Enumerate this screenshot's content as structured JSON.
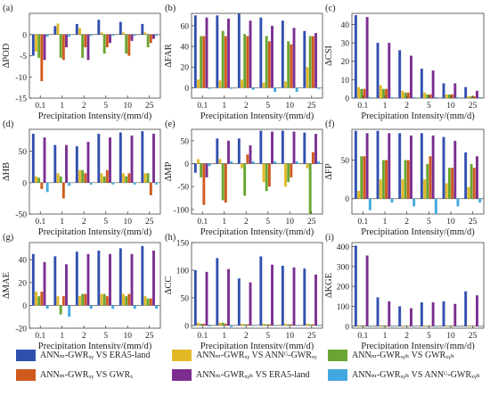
{
  "figure": {
    "legend": [
      {
        "label": "ANNₘ-GWRₓᵧ VS ERA5-land",
        "color": "#3050b0"
      },
      {
        "label": "ANNₘ-GWRₓᵧ VS ANNᴳ-GWRₓᵧ",
        "color": "#e2b826"
      },
      {
        "label": "ANNₘ-GWRₓᵧₕ VS GWRₓᵧₕ",
        "color": "#6aa531"
      },
      {
        "label": "ANNₘ-GWRₓᵧ VS GWRₓ",
        "color": "#cf5a1d"
      },
      {
        "label": "ANNₘ-GWRₓᵧₕ VS ERA5-land",
        "color": "#7b2e90"
      },
      {
        "label": "ANNₘ-GWRₓᵧₕ VS ANNᴳ-GWRₓᵧₕ",
        "color": "#42a9e0"
      }
    ]
  },
  "chart_data": [
    {
      "type": "bar",
      "panel": "(a)",
      "ylabel": "ΔPOD",
      "xlabel": "Precipitation Intensity/(mm/d)",
      "categories": [
        "0.1",
        "1",
        "2",
        "5",
        "10",
        "25"
      ],
      "ylim": [
        -15,
        5
      ],
      "yticks": [
        -15,
        -10,
        -5,
        0
      ],
      "series": [
        {
          "values": [
            -5,
            2,
            2.5,
            3.5,
            3,
            2.5
          ]
        },
        {
          "values": [
            -4,
            2.6,
            1.5,
            0.5,
            0.5,
            0.5
          ]
        },
        {
          "values": [
            -5.5,
            -5.5,
            -5.5,
            -4.5,
            -4.5,
            -3
          ]
        },
        {
          "values": [
            -11,
            -6,
            -3,
            -3,
            -5,
            -2
          ]
        },
        {
          "values": [
            -6,
            -3,
            -6,
            -2,
            -1.5,
            -1
          ]
        },
        {
          "values": [
            -0.5,
            -0.5,
            -0.3,
            -0.3,
            -0.3,
            -0.3
          ]
        }
      ]
    },
    {
      "type": "bar",
      "panel": "(b)",
      "ylabel": "ΔFAR",
      "xlabel": "Precipitation Intensity/(mm/d)",
      "categories": [
        "0.1",
        "1",
        "2",
        "5",
        "10",
        "25"
      ],
      "ylim": [
        -10,
        72
      ],
      "yticks": [
        0,
        20,
        40,
        60
      ],
      "series": [
        {
          "values": [
            70,
            70,
            72,
            68,
            65,
            55
          ]
        },
        {
          "values": [
            8,
            7,
            8,
            5,
            6,
            20
          ]
        },
        {
          "values": [
            50,
            55,
            52,
            50,
            45,
            50
          ]
        },
        {
          "values": [
            50,
            50,
            50,
            45,
            42,
            50
          ]
        },
        {
          "values": [
            68,
            67,
            65,
            60,
            58,
            53
          ]
        },
        {
          "values": [
            -1,
            -1,
            -2,
            -4,
            -4,
            -1
          ]
        }
      ]
    },
    {
      "type": "bar",
      "panel": "(c)",
      "ylabel": "ΔCSI",
      "xlabel": "Precipitation Intensity/(mm/d)",
      "categories": [
        "0.1",
        "1",
        "2",
        "5",
        "10",
        "25"
      ],
      "ylim": [
        0,
        46
      ],
      "yticks": [
        0,
        10,
        20,
        30,
        40
      ],
      "series": [
        {
          "values": [
            45,
            30,
            26,
            16,
            8,
            6
          ]
        },
        {
          "values": [
            6,
            7,
            4,
            3,
            2,
            1
          ]
        },
        {
          "values": [
            5,
            5,
            3,
            2,
            2,
            1
          ]
        },
        {
          "values": [
            5,
            5,
            3,
            2,
            2,
            1
          ]
        },
        {
          "values": [
            44,
            30,
            23,
            15,
            8,
            4
          ]
        },
        {
          "values": [
            0.5,
            0.5,
            0.5,
            0.5,
            0.5,
            0.5
          ]
        }
      ]
    },
    {
      "type": "bar",
      "panel": "(d)",
      "ylabel": "ΔHB",
      "xlabel": "Precipitation Intensity/(mm/d)",
      "categories": [
        "0.1",
        "1",
        "2",
        "5",
        "10",
        "25"
      ],
      "ylim": [
        -50,
        85
      ],
      "yticks": [
        -50,
        0,
        50
      ],
      "series": [
        {
          "values": [
            78,
            60,
            58,
            78,
            80,
            82
          ]
        },
        {
          "values": [
            10,
            15,
            20,
            15,
            15,
            15
          ]
        },
        {
          "values": [
            8,
            10,
            20,
            10,
            10,
            15
          ]
        },
        {
          "values": [
            -10,
            -25,
            15,
            20,
            15,
            -20
          ]
        },
        {
          "values": [
            72,
            60,
            65,
            72,
            75,
            78
          ]
        },
        {
          "values": [
            -15,
            -5,
            -3,
            -3,
            -3,
            -3
          ]
        }
      ]
    },
    {
      "type": "bar",
      "panel": "(e)",
      "ylabel": "ΔMP",
      "xlabel": "Precipitation Intensity/(mm/d)",
      "categories": [
        "0.1",
        "1",
        "2",
        "5",
        "10",
        "25"
      ],
      "ylim": [
        -110,
        75
      ],
      "yticks": [
        -100,
        -50,
        0,
        50
      ],
      "series": [
        {
          "values": [
            -20,
            55,
            55,
            72,
            72,
            68
          ]
        },
        {
          "values": [
            10,
            10,
            -10,
            -40,
            -50,
            -10
          ]
        },
        {
          "values": [
            -30,
            -80,
            -70,
            -60,
            -40,
            -110
          ]
        },
        {
          "values": [
            -90,
            -85,
            20,
            -50,
            -30,
            25
          ]
        },
        {
          "values": [
            -30,
            50,
            40,
            70,
            70,
            65
          ]
        },
        {
          "values": [
            -5,
            5,
            5,
            5,
            5,
            5
          ]
        }
      ]
    },
    {
      "type": "bar",
      "panel": "(f)",
      "ylabel": "ΔFP",
      "xlabel": "Precipitation Intensity/(mm/d)",
      "categories": [
        "0.1",
        "1",
        "2",
        "5",
        "10",
        "25"
      ],
      "ylim": [
        -20,
        90
      ],
      "yticks": [
        0,
        50
      ],
      "series": [
        {
          "values": [
            88,
            88,
            85,
            85,
            80,
            60
          ]
        },
        {
          "values": [
            10,
            25,
            25,
            25,
            20,
            15
          ]
        },
        {
          "values": [
            55,
            50,
            50,
            45,
            40,
            45
          ]
        },
        {
          "values": [
            55,
            50,
            50,
            55,
            40,
            40
          ]
        },
        {
          "values": [
            85,
            85,
            82,
            82,
            75,
            55
          ]
        },
        {
          "values": [
            -15,
            -5,
            -10,
            -20,
            -10,
            -5
          ]
        }
      ]
    },
    {
      "type": "bar",
      "panel": "(g)",
      "ylabel": "ΔMAE",
      "xlabel": "Precipitation Intensity/(mm/d)",
      "categories": [
        "0.1",
        "1",
        "2",
        "5",
        "10",
        "25"
      ],
      "ylim": [
        -20,
        55
      ],
      "yticks": [
        -20,
        0,
        20,
        40
      ],
      "series": [
        {
          "values": [
            45,
            43,
            47,
            48,
            50,
            52
          ]
        },
        {
          "values": [
            12,
            8,
            8,
            10,
            10,
            8
          ]
        },
        {
          "values": [
            8,
            -8,
            10,
            10,
            8,
            6
          ]
        },
        {
          "values": [
            12,
            8,
            10,
            8,
            10,
            6
          ]
        },
        {
          "values": [
            38,
            36,
            45,
            45,
            45,
            48
          ]
        },
        {
          "values": [
            -3,
            -10,
            -3,
            -3,
            -3,
            -3
          ]
        }
      ]
    },
    {
      "type": "bar",
      "panel": "(h)",
      "ylabel": "ΔCC",
      "xlabel": "Precipitation Intensity/(mm/d)",
      "categories": [
        "0.1",
        "1",
        "2",
        "5",
        "10",
        "25"
      ],
      "ylim": [
        -5,
        150
      ],
      "yticks": [
        0,
        50,
        100,
        150
      ],
      "series": [
        {
          "values": [
            100,
            122,
            85,
            125,
            108,
            103
          ]
        },
        {
          "values": [
            5,
            5,
            3,
            3,
            3,
            3
          ]
        },
        {
          "values": [
            3,
            5,
            2,
            2,
            2,
            2
          ]
        },
        {
          "values": [
            3,
            3,
            2,
            2,
            2,
            2
          ]
        },
        {
          "values": [
            97,
            102,
            78,
            110,
            105,
            92
          ]
        },
        {
          "values": [
            -2,
            -3,
            -1,
            -1,
            -1,
            -1
          ]
        }
      ]
    },
    {
      "type": "bar",
      "panel": "(i)",
      "ylabel": "ΔKGE",
      "xlabel": "Precipitation Intensity/(mm/d)",
      "categories": [
        "0.1",
        "1",
        "2",
        "5",
        "10",
        "25"
      ],
      "ylim": [
        -10,
        420
      ],
      "yticks": [
        0,
        100,
        200,
        300,
        400
      ],
      "series": [
        {
          "values": [
            405,
            145,
            100,
            120,
            125,
            175
          ]
        },
        {
          "values": [
            5,
            5,
            3,
            3,
            3,
            3
          ]
        },
        {
          "values": [
            3,
            3,
            2,
            2,
            2,
            2
          ]
        },
        {
          "values": [
            3,
            3,
            2,
            2,
            2,
            2
          ]
        },
        {
          "values": [
            355,
            125,
            90,
            120,
            112,
            155
          ]
        },
        {
          "values": [
            -2,
            -2,
            -1,
            -1,
            -1,
            -1
          ]
        }
      ]
    }
  ]
}
